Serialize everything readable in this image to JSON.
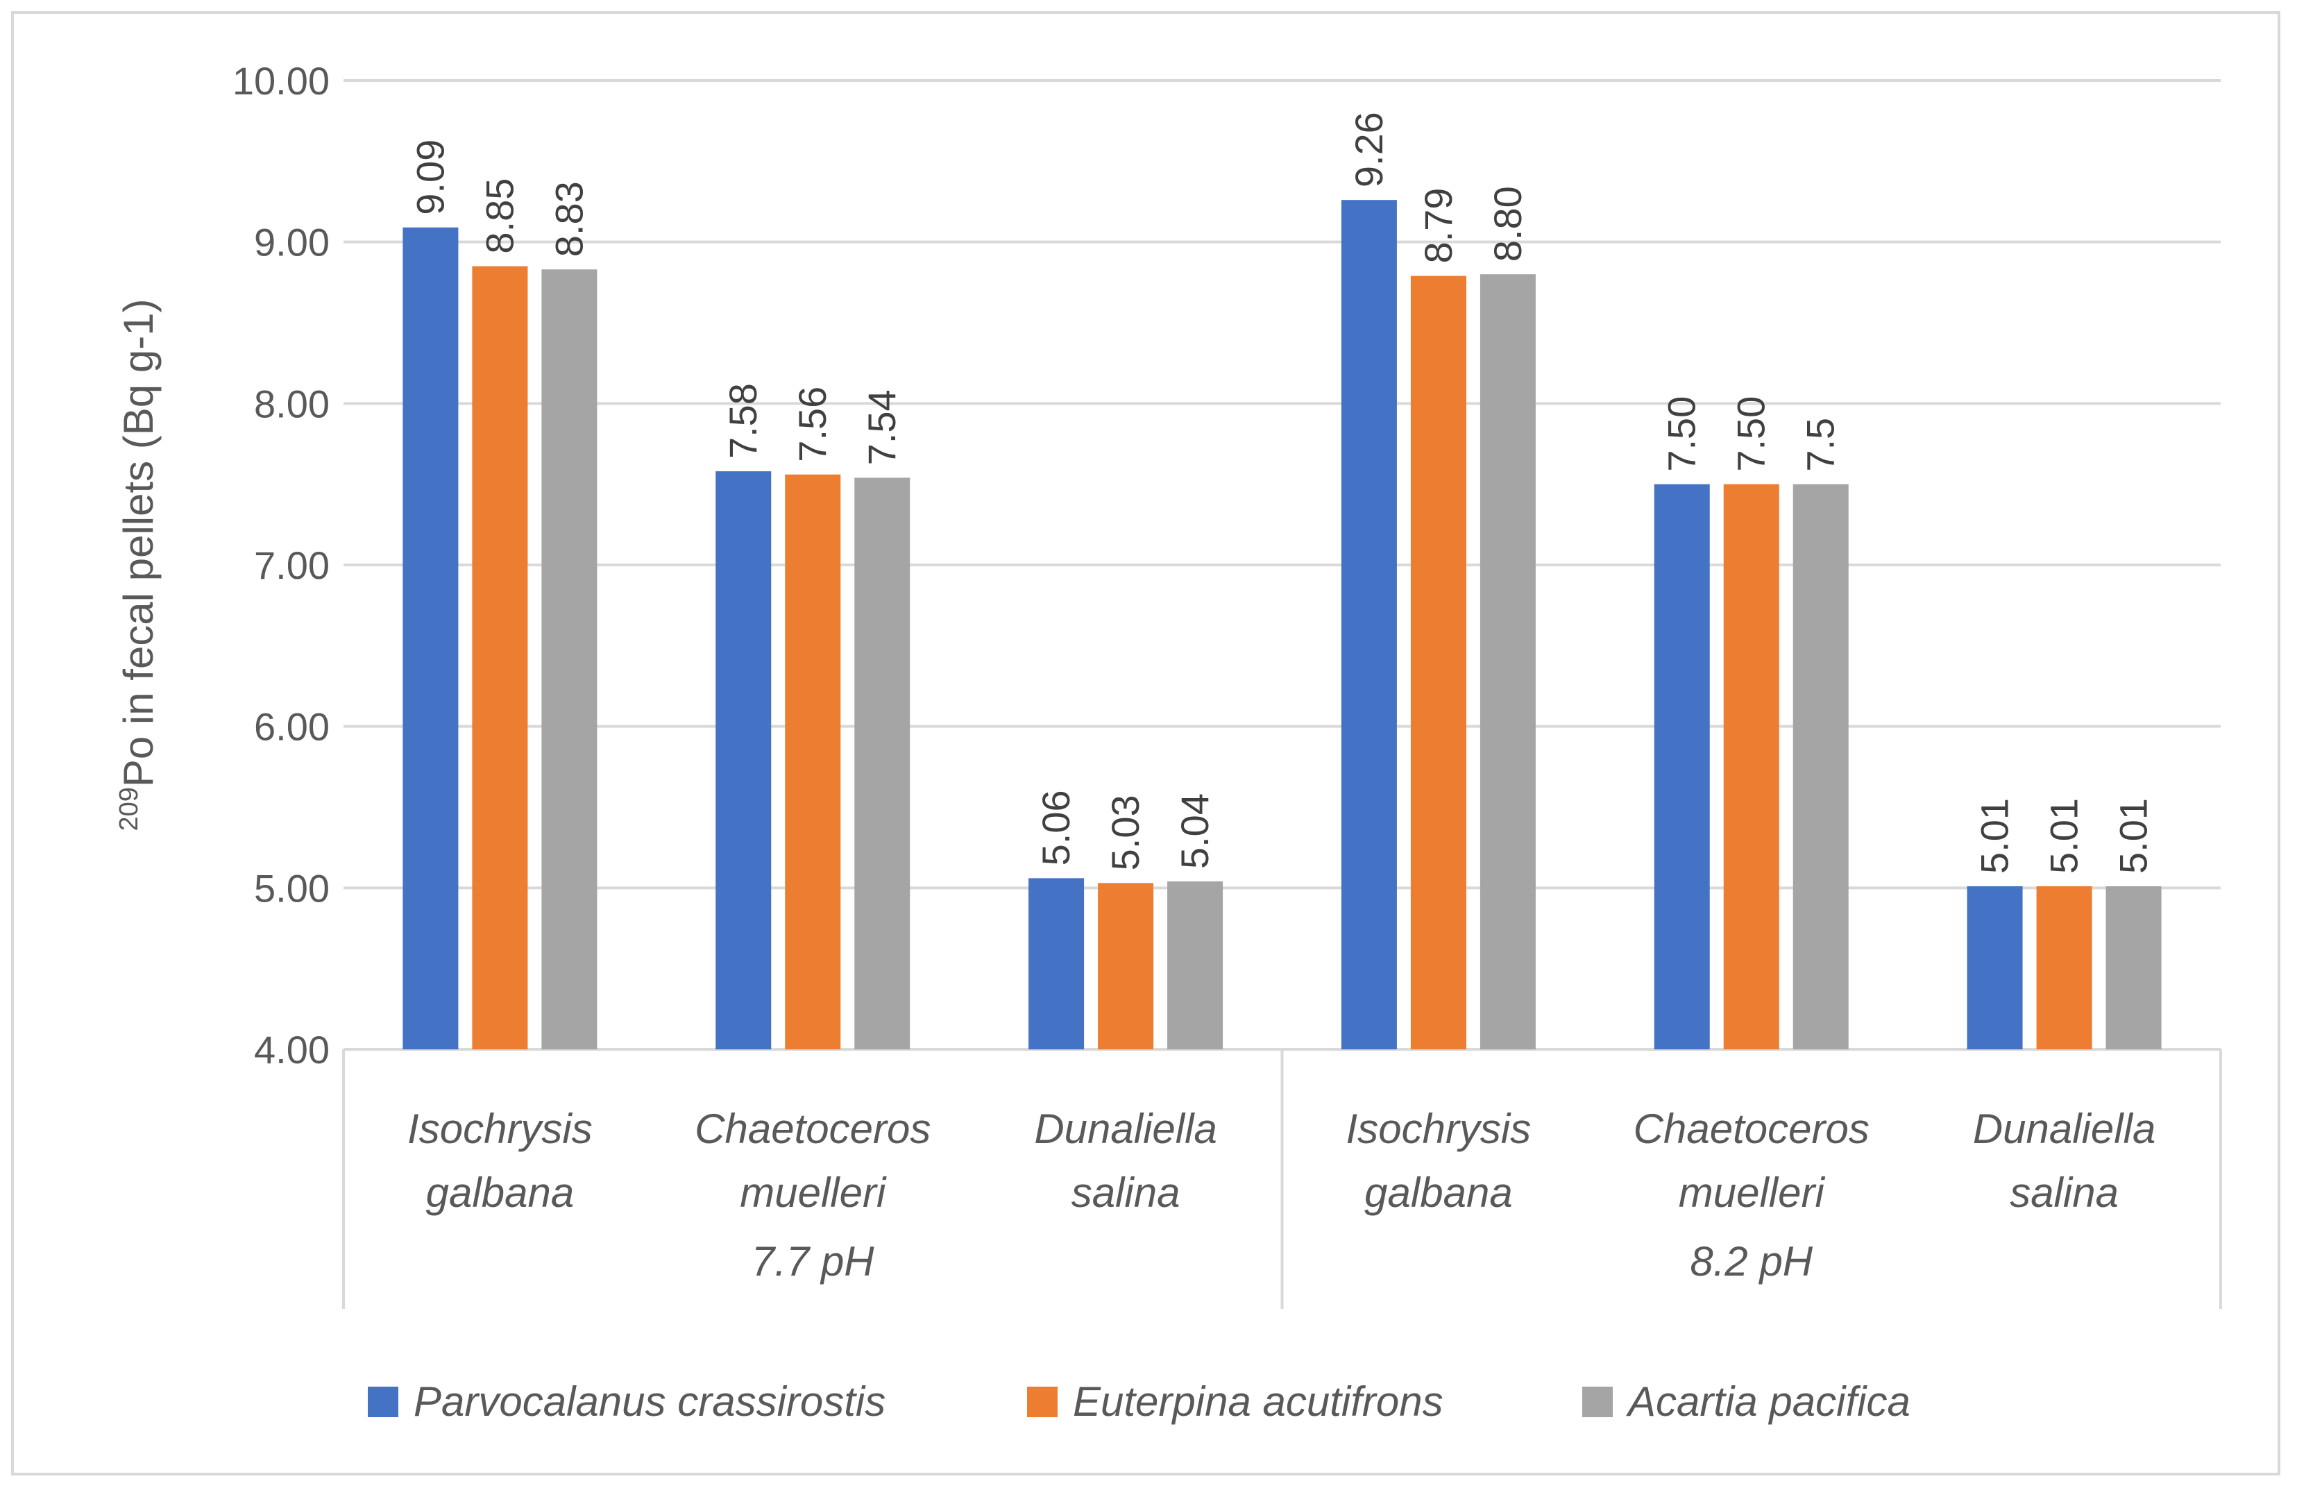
{
  "chart_data": {
    "type": "bar",
    "title": "",
    "ylabel": {
      "superscript": "209",
      "text": "Po in fecal pellets (Bq g-1)"
    },
    "xlabel": "",
    "ylim": [
      4,
      10
    ],
    "yticks": [
      "4.00",
      "5.00",
      "6.00",
      "7.00",
      "8.00",
      "9.00",
      "10.00"
    ],
    "grid": true,
    "legend_position": "bottom",
    "groups": [
      {
        "label": "7.7 pH",
        "categories": [
          [
            "Isochrysis",
            "galbana"
          ],
          [
            "Chaetoceros",
            "muelleri"
          ],
          [
            "Dunaliella",
            "salina"
          ]
        ]
      },
      {
        "label": "8.2 pH",
        "categories": [
          [
            "Isochrysis",
            "galbana"
          ],
          [
            "Chaetoceros",
            "muelleri"
          ],
          [
            "Dunaliella",
            "salina"
          ]
        ]
      }
    ],
    "series": [
      {
        "name": "Parvocalanus crassirostis",
        "color": "#4472c4",
        "values": [
          9.09,
          7.58,
          5.06,
          9.26,
          7.5,
          5.01
        ],
        "labels": [
          "9.09",
          "7.58",
          "5.06",
          "9.26",
          "7.50",
          "5.01"
        ]
      },
      {
        "name": "Euterpina acutifrons",
        "color": "#ed7d31",
        "values": [
          8.85,
          7.56,
          5.03,
          8.79,
          7.5,
          5.01
        ],
        "labels": [
          "8.85",
          "7.56",
          "5.03",
          "8.79",
          "7.50",
          "5.01"
        ]
      },
      {
        "name": "Acartia pacifica",
        "color": "#a5a5a5",
        "values": [
          8.83,
          7.54,
          5.04,
          8.8,
          7.5,
          5.01
        ],
        "labels": [
          "8.83",
          "7.54",
          "5.04",
          "8.80",
          "7.5",
          "5.01"
        ]
      }
    ]
  }
}
